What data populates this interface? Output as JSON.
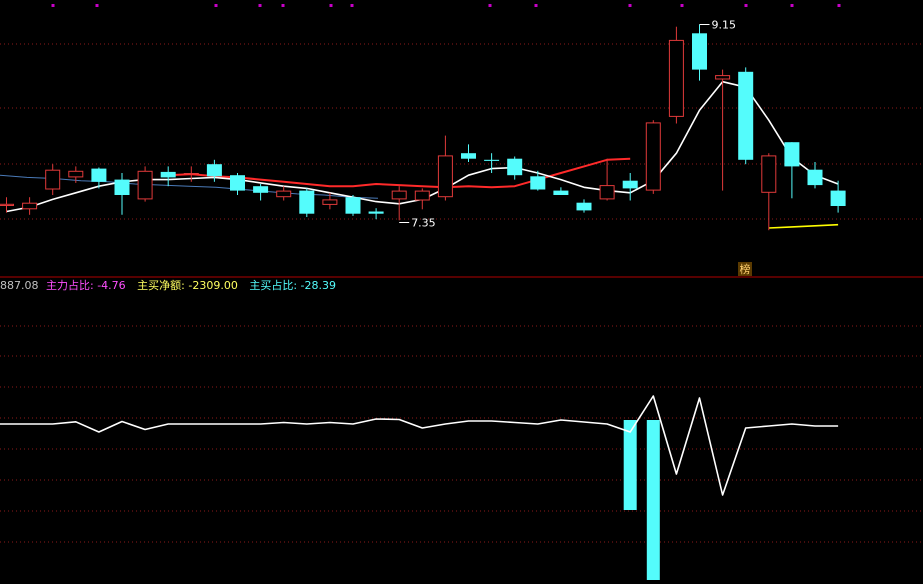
{
  "colors": {
    "background": "#000000",
    "grid": "#8b1a1a",
    "divider": "#b00000",
    "up": "#e03a3a",
    "down": "#54fcfc",
    "ma_white": "#ffffff",
    "ma_red": "#ff2a2a",
    "ma_blue": "#4a7ab8",
    "ma_yellow": "#ffff00",
    "dot": "#c800c8",
    "label_main": "#ff50ff",
    "label_net": "#ffff60",
    "label_buy": "#54fcfc",
    "label_prefix": "#c0c0c0"
  },
  "indicator_header": {
    "prefix": "887.08",
    "items": [
      {
        "label": "主力占比: ",
        "value": "-4.76"
      },
      {
        "label": "主买净额: ",
        "value": "-2309.00"
      },
      {
        "label": "主买占比: ",
        "value": "-28.39"
      }
    ]
  },
  "badge": {
    "text": "榜"
  },
  "chart_data": [
    {
      "type": "candlestick",
      "price_range": [
        6.9,
        9.3
      ],
      "grid_lines_dotted": true,
      "annotations": [
        {
          "text": "9.15",
          "candle_index": 30,
          "value": 9.15
        },
        {
          "text": "7.35",
          "candle_index": 17,
          "value": 7.35
        }
      ],
      "candles": [
        {
          "o": 7.5,
          "c": 7.52,
          "h": 7.58,
          "l": 7.44
        },
        {
          "o": 7.47,
          "c": 7.53,
          "h": 7.58,
          "l": 7.42
        },
        {
          "o": 7.65,
          "c": 7.83,
          "h": 7.88,
          "l": 7.6
        },
        {
          "o": 7.76,
          "c": 7.82,
          "h": 7.86,
          "l": 7.71
        },
        {
          "o": 7.84,
          "c": 7.72,
          "h": 7.85,
          "l": 7.66
        },
        {
          "o": 7.74,
          "c": 7.6,
          "h": 7.8,
          "l": 7.42
        },
        {
          "o": 7.56,
          "c": 7.82,
          "h": 7.86,
          "l": 7.54
        },
        {
          "o": 7.81,
          "c": 7.76,
          "h": 7.86,
          "l": 7.68
        },
        {
          "o": 7.79,
          "c": 7.8,
          "h": 7.86,
          "l": 7.72
        },
        {
          "o": 7.88,
          "c": 7.77,
          "h": 7.92,
          "l": 7.72
        },
        {
          "o": 7.78,
          "c": 7.64,
          "h": 7.8,
          "l": 7.6
        },
        {
          "o": 7.68,
          "c": 7.62,
          "h": 7.7,
          "l": 7.55
        },
        {
          "o": 7.58,
          "c": 7.64,
          "h": 7.68,
          "l": 7.55
        },
        {
          "o": 7.64,
          "c": 7.43,
          "h": 7.66,
          "l": 7.4
        },
        {
          "o": 7.51,
          "c": 7.56,
          "h": 7.62,
          "l": 7.47
        },
        {
          "o": 7.58,
          "c": 7.43,
          "h": 7.6,
          "l": 7.41
        },
        {
          "o": 7.45,
          "c": 7.43,
          "h": 7.48,
          "l": 7.38
        },
        {
          "o": 7.56,
          "c": 7.64,
          "h": 7.68,
          "l": 7.37
        },
        {
          "o": 7.55,
          "c": 7.64,
          "h": 7.66,
          "l": 7.47
        },
        {
          "o": 7.58,
          "c": 7.96,
          "h": 8.14,
          "l": 7.55
        },
        {
          "o": 7.98,
          "c": 7.93,
          "h": 8.06,
          "l": 7.9
        },
        {
          "o": 7.92,
          "c": 7.91,
          "h": 7.98,
          "l": 7.8
        },
        {
          "o": 7.93,
          "c": 7.78,
          "h": 7.95,
          "l": 7.74
        },
        {
          "o": 7.77,
          "c": 7.65,
          "h": 7.82,
          "l": 7.64
        },
        {
          "o": 7.64,
          "c": 7.6,
          "h": 7.67,
          "l": 7.6
        },
        {
          "o": 7.53,
          "c": 7.46,
          "h": 7.56,
          "l": 7.44
        },
        {
          "o": 7.56,
          "c": 7.69,
          "h": 7.93,
          "l": 7.55
        },
        {
          "o": 7.73,
          "c": 7.66,
          "h": 7.8,
          "l": 7.55
        },
        {
          "o": 7.64,
          "c": 8.26,
          "h": 8.28,
          "l": 7.61
        },
        {
          "o": 8.31,
          "c": 9.01,
          "h": 9.13,
          "l": 8.25
        },
        {
          "o": 9.07,
          "c": 8.74,
          "h": 9.15,
          "l": 8.64
        },
        {
          "o": 8.65,
          "c": 8.69,
          "h": 8.74,
          "l": 7.64
        },
        {
          "o": 8.72,
          "c": 7.92,
          "h": 8.76,
          "l": 7.88
        },
        {
          "o": 7.62,
          "c": 7.96,
          "h": 7.98,
          "l": 7.28
        },
        {
          "o": 8.08,
          "c": 7.86,
          "h": 8.08,
          "l": 7.57
        },
        {
          "o": 7.83,
          "c": 7.69,
          "h": 7.9,
          "l": 7.66
        },
        {
          "o": 7.64,
          "c": 7.5,
          "h": 7.73,
          "l": 7.44
        }
      ],
      "ma_white": [
        7.45,
        7.49,
        7.56,
        7.62,
        7.68,
        7.72,
        7.74,
        7.74,
        7.75,
        7.76,
        7.74,
        7.71,
        7.68,
        7.66,
        7.62,
        7.58,
        7.54,
        7.52,
        7.56,
        7.66,
        7.78,
        7.84,
        7.85,
        7.8,
        7.74,
        7.67,
        7.64,
        7.62,
        7.73,
        7.98,
        8.37,
        8.63,
        8.58,
        8.28,
        7.94,
        7.78,
        7.7
      ],
      "ma_red": [
        7.78,
        7.79,
        7.77,
        7.76,
        7.74,
        7.72,
        7.7,
        7.68,
        7.68,
        7.7,
        7.69,
        7.68,
        7.67,
        7.68,
        7.67,
        7.68,
        7.74,
        7.8,
        7.86,
        7.92,
        7.93
      ],
      "ma_red_start": 7,
      "ma_blue": [
        7.78,
        7.76,
        7.75,
        7.73,
        7.72,
        7.7,
        7.69,
        7.68,
        7.67,
        7.65,
        7.63,
        7.61,
        7.6,
        7.58,
        7.57
      ],
      "ma_yellow": [
        7.3,
        7.31,
        7.32,
        7.33
      ],
      "ma_yellow_start": 33
    },
    {
      "type": "line+bar",
      "line": [
        -4.0,
        -4.0,
        -4.0,
        -1.8,
        -12.0,
        -1.5,
        -9.5,
        -4.0,
        -4.0,
        -4.0,
        -4.0,
        -4.0,
        -2.5,
        -4.0,
        -2.5,
        -4.0,
        1.0,
        0.5,
        -8.0,
        -4.0,
        -1.0,
        -1.0,
        -2.5,
        -4.0,
        0.0,
        -2.0,
        -4.0,
        -12.0,
        24.0,
        -54.0,
        22.0,
        -75.0,
        -8.0,
        -6.0,
        -4.0,
        -6.0,
        -6.0
      ],
      "bars": [
        {
          "index": 27,
          "value": -90
        },
        {
          "index": 28,
          "value": -160
        }
      ]
    }
  ]
}
